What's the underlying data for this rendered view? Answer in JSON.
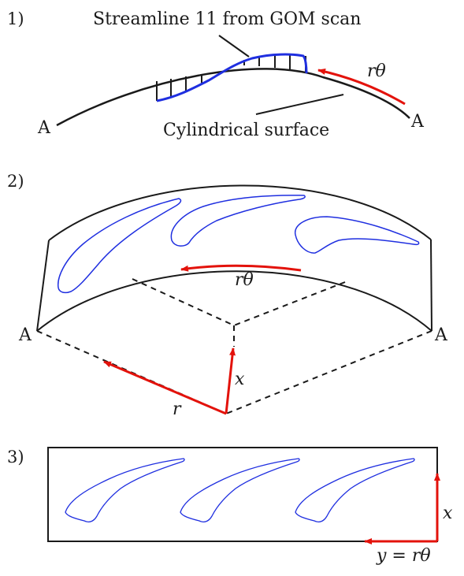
{
  "steps": {
    "one": "1)",
    "two": "2)",
    "three": "3)"
  },
  "panel1": {
    "streamline_label": "Streamline 11 from GOM scan",
    "surface_label": "Cylindrical surface",
    "direction_label": "rθ",
    "end_left": "A",
    "end_right": "A"
  },
  "panel2": {
    "direction_label": "rθ",
    "radius_label": "r",
    "axial_label": "x",
    "end_left": "A",
    "end_right": "A"
  },
  "panel3": {
    "axial_label": "x",
    "tangential_label": "y = rθ"
  },
  "colors": {
    "line": "#1a1a1a",
    "streamline": "#1f2fe0",
    "arrow": "#e3120b"
  }
}
